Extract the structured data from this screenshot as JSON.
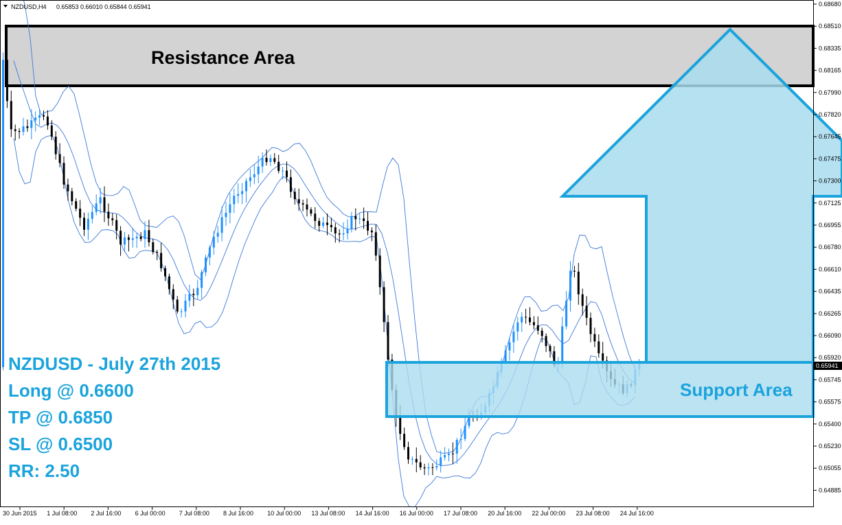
{
  "header": {
    "symbol": "NZDUSD,H4",
    "ohlc": "0.65853 0.66010 0.65844 0.65941"
  },
  "price_label": "0.65941",
  "zones": {
    "resistance_label": "Resistance Area",
    "support_label": "Support Area"
  },
  "trade_info": [
    "NZDUSD - July 27th 2015",
    "Long @ 0.6600",
    "TP @ 0.6850",
    "SL @ 0.6500",
    "RR: 2.50"
  ],
  "colors": {
    "bull": "#1e90ff",
    "bear": "#000000",
    "band": "#3c78d8",
    "zone_support": "#abdcef",
    "zone_border": "#1aa3dc",
    "resistance_fill": "#d3d3d3"
  },
  "chart_data": {
    "type": "candlestick",
    "symbol": "NZDUSD",
    "timeframe": "H4",
    "ylim": [
      0.6488,
      0.6869
    ],
    "y_ticks": [
      "0.68680",
      "0.68510",
      "0.68335",
      "0.68165",
      "0.67990",
      "0.67820",
      "0.67645",
      "0.67475",
      "0.67300",
      "0.67125",
      "0.66955",
      "0.66780",
      "0.66610",
      "0.66435",
      "0.66265",
      "0.66090",
      "0.65920",
      "0.65745",
      "0.65575",
      "0.65400",
      "0.65230",
      "0.65055",
      "0.64885"
    ],
    "x_ticks": [
      "30 Jun 2015",
      "1 Jul 08:00",
      "2 Jul 16:00",
      "6 Jul 00:00",
      "7 Jul 08:00",
      "8 Jul 16:00",
      "10 Jul 00:00",
      "13 Jul 08:00",
      "14 Jul 16:00",
      "16 Jul 00:00",
      "17 Jul 08:00",
      "20 Jul 16:00",
      "22 Jul 00:00",
      "23 Jul 08:00",
      "24 Jul 16:00"
    ],
    "last_price": 0.65941,
    "resistance_zone": [
      0.681,
      0.6854
    ],
    "support_zone": [
      0.6557,
      0.6598
    ],
    "trade": {
      "entry": 0.66,
      "take_profit": 0.685,
      "stop_loss": 0.65,
      "risk_reward": 2.5
    },
    "overlay": "Bollinger Bands",
    "grid": false
  }
}
